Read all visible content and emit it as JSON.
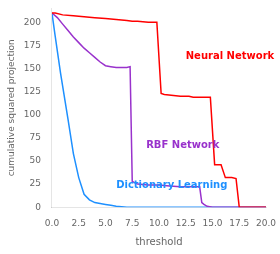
{
  "chart_data": {
    "type": "line",
    "xlabel": "threshold",
    "ylabel": "cumulative squared projection",
    "xlim": [
      0.0,
      20.0
    ],
    "ylim": [
      0,
      215
    ],
    "xticks": [
      {
        "value": 0.0,
        "label": "0.0"
      },
      {
        "value": 2.5,
        "label": "2.5"
      },
      {
        "value": 5.0,
        "label": "5.0"
      },
      {
        "value": 7.5,
        "label": "7.5"
      },
      {
        "value": 10.0,
        "label": "10.0"
      },
      {
        "value": 12.5,
        "label": "12.5"
      },
      {
        "value": 15.0,
        "label": "15.0"
      },
      {
        "value": 17.5,
        "label": "17.5"
      },
      {
        "value": 20.0,
        "label": "20.0"
      }
    ],
    "yticks": [
      0,
      25,
      50,
      75,
      100,
      125,
      150,
      175,
      200
    ],
    "grid": false,
    "series": [
      {
        "name": "Neural Network",
        "color": "#ff0000",
        "x": [
          0.0,
          0.3,
          1.0,
          2.0,
          3.0,
          4.0,
          5.0,
          6.0,
          7.0,
          7.5,
          8.0,
          9.0,
          9.8,
          10.2,
          10.5,
          12.0,
          12.8,
          13.2,
          14.8,
          15.2,
          15.8,
          16.2,
          16.8,
          17.2,
          17.5,
          18.0,
          20.0
        ],
        "values": [
          210,
          210,
          208,
          207,
          206,
          205,
          204,
          203,
          202,
          201,
          201,
          200,
          200,
          123,
          122,
          120,
          120,
          119,
          119,
          46,
          46,
          32,
          32,
          31,
          0,
          0,
          0
        ]
      },
      {
        "name": "RBF Network",
        "color": "#9932cc",
        "x": [
          0.0,
          0.5,
          1.0,
          1.5,
          2.0,
          2.5,
          3.0,
          3.5,
          4.0,
          4.5,
          5.0,
          5.5,
          6.0,
          6.5,
          7.0,
          7.3,
          7.5,
          7.8,
          8.0,
          9.0,
          10.0,
          11.0,
          12.0,
          13.0,
          13.8,
          14.0,
          14.2,
          14.5,
          15.0,
          20.0
        ],
        "values": [
          210,
          205,
          198,
          191,
          184,
          178,
          172,
          167,
          162,
          157,
          153,
          152,
          151,
          151,
          151,
          152,
          28,
          26,
          25,
          24,
          24,
          23,
          22,
          22,
          22,
          5,
          3,
          1,
          0,
          0
        ]
      },
      {
        "name": "Dictionary Learning",
        "color": "#1e90ff",
        "x": [
          0.0,
          0.3,
          0.8,
          1.5,
          2.0,
          2.5,
          3.0,
          3.5,
          4.0,
          4.5,
          5.0,
          5.5,
          6.0,
          7.0,
          7.5,
          8.0,
          20.0
        ],
        "values": [
          210,
          185,
          145,
          95,
          58,
          32,
          14,
          8,
          5,
          4,
          3,
          2,
          1,
          0,
          0,
          0,
          0
        ]
      }
    ]
  }
}
